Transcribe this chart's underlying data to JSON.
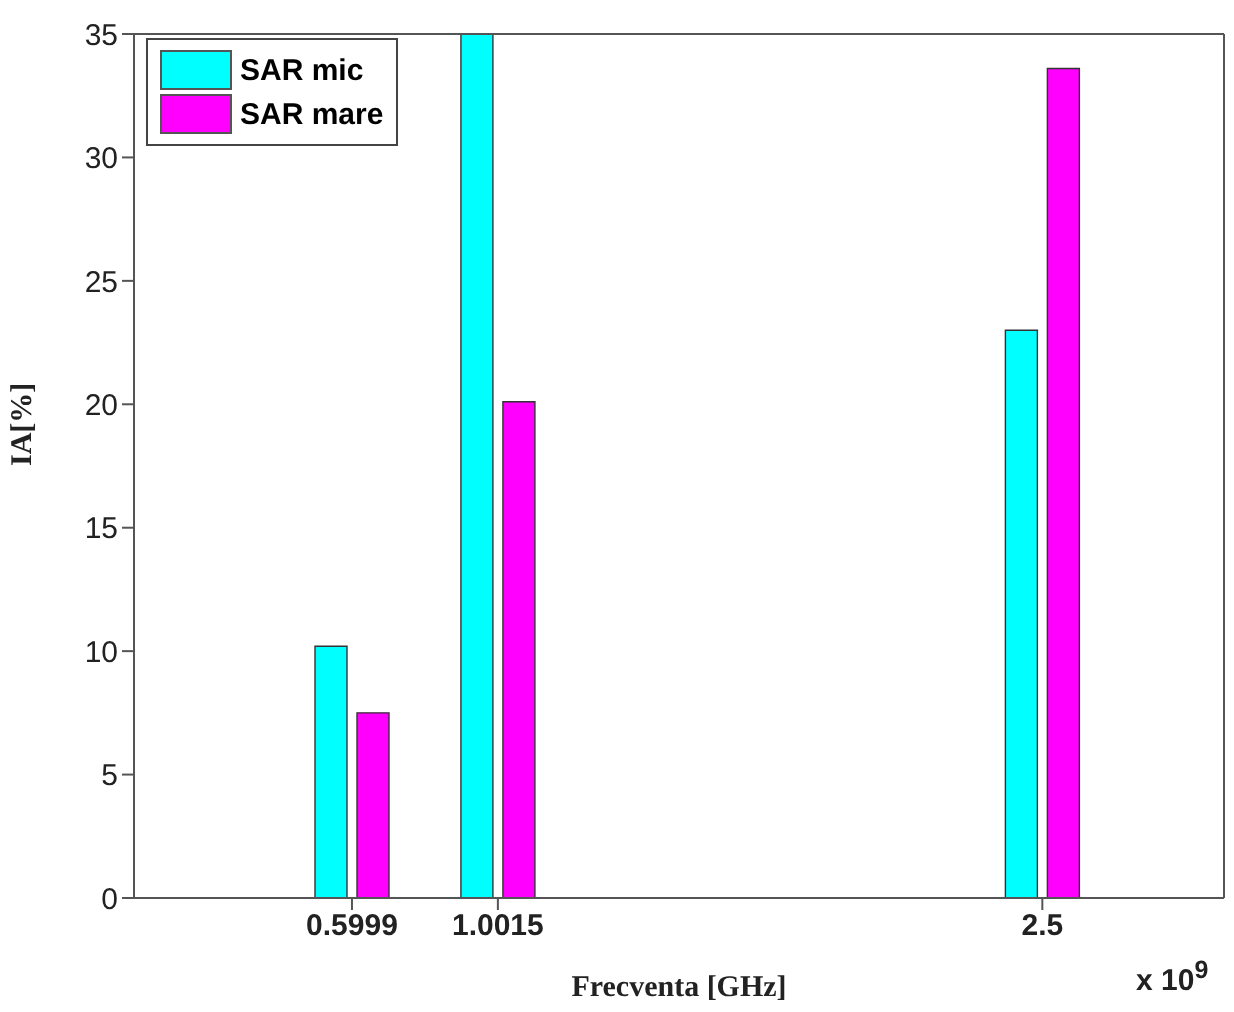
{
  "chart_data": {
    "type": "bar",
    "xlabel": "Frecventa [GHz]",
    "ylabel": "IA[%]",
    "x": [
      0.5999,
      1.0015,
      2.5
    ],
    "series": [
      {
        "name": "SAR mic",
        "color": "#00ffff",
        "values": [
          10.2,
          35,
          23.0
        ]
      },
      {
        "name": "SAR mare",
        "color": "#ff00ff",
        "values": [
          7.5,
          20.1,
          33.6
        ]
      }
    ],
    "xlim": [
      0,
      3
    ],
    "xticks": [
      0.5999,
      1.0015,
      2.5
    ],
    "ylim": [
      0,
      35
    ],
    "yticks": [
      0,
      5,
      10,
      15,
      20,
      25,
      30,
      35
    ],
    "legend": "top left",
    "grid": false,
    "annotations": [
      "x 10$^{9}$"
    ]
  }
}
